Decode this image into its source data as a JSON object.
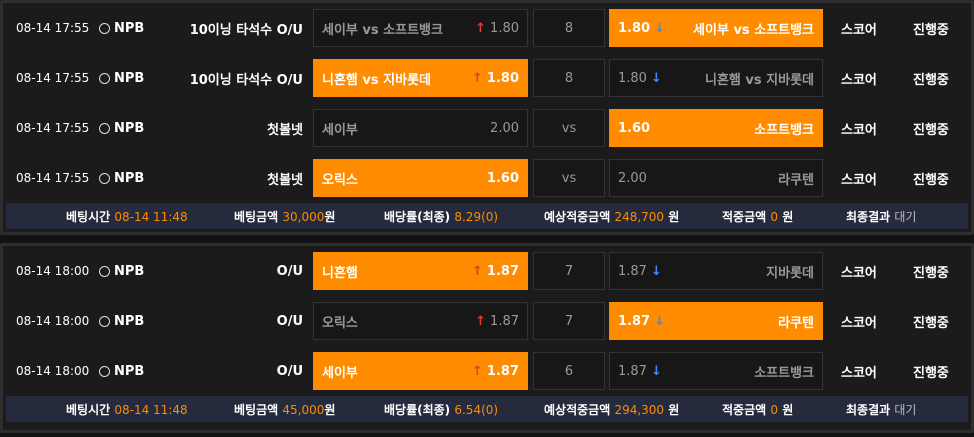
{
  "colors": {
    "accent": "#ff8c00",
    "up": "#e53935",
    "down": "#3a8cff"
  },
  "panels": [
    {
      "rows": [
        {
          "date": "08-14 17:55",
          "league": "NPB",
          "type": "10이닝 타석수 O/U",
          "home": "세이부 vs 소프트뱅크",
          "home_odd": "1.80",
          "home_arrow": "up",
          "mid": "8",
          "away": "세이부 vs 소프트뱅크",
          "away_odd": "1.80",
          "away_arrow": "down",
          "selected": "away",
          "score": "스코어",
          "status": "진행중"
        },
        {
          "date": "08-14 17:55",
          "league": "NPB",
          "type": "10이닝 타석수 O/U",
          "home": "니혼햄 vs 지바롯데",
          "home_odd": "1.80",
          "home_arrow": "up",
          "mid": "8",
          "away": "니혼햄 vs 지바롯데",
          "away_odd": "1.80",
          "away_arrow": "down",
          "selected": "home",
          "score": "스코어",
          "status": "진행중"
        },
        {
          "date": "08-14 17:55",
          "league": "NPB",
          "type": "첫볼넷",
          "home": "세이부",
          "home_odd": "2.00",
          "home_arrow": "",
          "mid": "vs",
          "away": "소프트뱅크",
          "away_odd": "1.60",
          "away_arrow": "",
          "selected": "away",
          "score": "스코어",
          "status": "진행중"
        },
        {
          "date": "08-14 17:55",
          "league": "NPB",
          "type": "첫볼넷",
          "home": "오릭스",
          "home_odd": "1.60",
          "home_arrow": "",
          "mid": "vs",
          "away": "라쿠텐",
          "away_odd": "2.00",
          "away_arrow": "",
          "selected": "home",
          "score": "스코어",
          "status": "진행중"
        }
      ],
      "footer": {
        "bet_time_label": "베팅시간",
        "bet_time": "08-14 11:48",
        "bet_amount_label": "베팅금액",
        "bet_amount": "30,000",
        "won": "원",
        "odds_label": "배당률(최종)",
        "odds": "8.29(0)",
        "expected_label": "예상적중금액",
        "expected": "248,700",
        "win_label": "적중금액",
        "win": "0",
        "result_label": "최종결과",
        "result": "대기"
      }
    },
    {
      "rows": [
        {
          "date": "08-14 18:00",
          "league": "NPB",
          "type": "O/U",
          "home": "니혼햄",
          "home_odd": "1.87",
          "home_arrow": "up",
          "mid": "7",
          "away": "지바롯데",
          "away_odd": "1.87",
          "away_arrow": "down",
          "selected": "home",
          "score": "스코어",
          "status": "진행중"
        },
        {
          "date": "08-14 18:00",
          "league": "NPB",
          "type": "O/U",
          "home": "오릭스",
          "home_odd": "1.87",
          "home_arrow": "up",
          "mid": "7",
          "away": "라쿠텐",
          "away_odd": "1.87",
          "away_arrow": "down",
          "selected": "away",
          "score": "스코어",
          "status": "진행중"
        },
        {
          "date": "08-14 18:00",
          "league": "NPB",
          "type": "O/U",
          "home": "세이부",
          "home_odd": "1.87",
          "home_arrow": "up",
          "mid": "6",
          "away": "소프트뱅크",
          "away_odd": "1.87",
          "away_arrow": "down",
          "selected": "home",
          "score": "스코어",
          "status": "진행중"
        }
      ],
      "footer": {
        "bet_time_label": "베팅시간",
        "bet_time": "08-14 11:48",
        "bet_amount_label": "베팅금액",
        "bet_amount": "45,000",
        "won": "원",
        "odds_label": "배당률(최종)",
        "odds": "6.54(0)",
        "expected_label": "예상적중금액",
        "expected": "294,300",
        "win_label": "적중금액",
        "win": "0",
        "result_label": "최종결과",
        "result": "대기"
      }
    }
  ]
}
